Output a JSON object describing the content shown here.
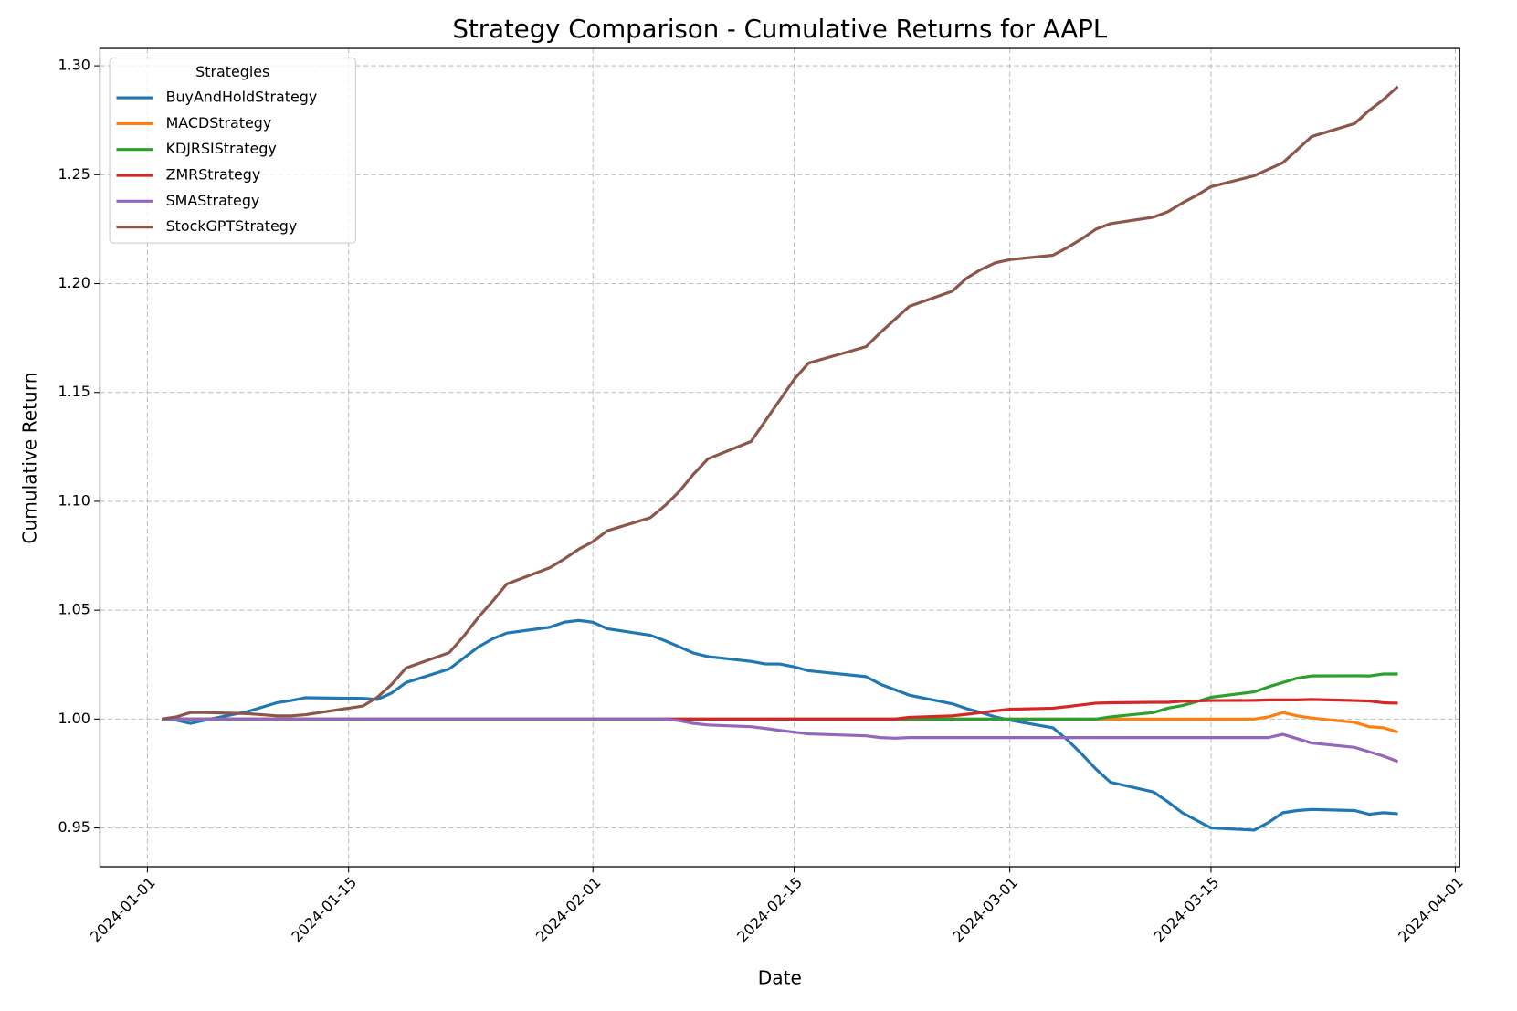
{
  "chart_data": {
    "type": "line",
    "title": "Strategy Comparison - Cumulative Returns for AAPL",
    "x_label": "Date",
    "y_label": "Cumulative Return",
    "legend_title": "Strategies",
    "legend": "upper left",
    "grid": true,
    "x": [
      "2024-01-02",
      "2024-01-03",
      "2024-01-04",
      "2024-01-05",
      "2024-01-08",
      "2024-01-09",
      "2024-01-10",
      "2024-01-11",
      "2024-01-12",
      "2024-01-16",
      "2024-01-17",
      "2024-01-18",
      "2024-01-19",
      "2024-01-22",
      "2024-01-23",
      "2024-01-24",
      "2024-01-25",
      "2024-01-26",
      "2024-01-29",
      "2024-01-30",
      "2024-01-31",
      "2024-02-01",
      "2024-02-02",
      "2024-02-05",
      "2024-02-06",
      "2024-02-07",
      "2024-02-08",
      "2024-02-09",
      "2024-02-12",
      "2024-02-13",
      "2024-02-14",
      "2024-02-15",
      "2024-02-16",
      "2024-02-20",
      "2024-02-21",
      "2024-02-22",
      "2024-02-23",
      "2024-02-26",
      "2024-02-27",
      "2024-02-28",
      "2024-02-29",
      "2024-03-01",
      "2024-03-04",
      "2024-03-05",
      "2024-03-06",
      "2024-03-07",
      "2024-03-08",
      "2024-03-11",
      "2024-03-12",
      "2024-03-13",
      "2024-03-14",
      "2024-03-15",
      "2024-03-18",
      "2024-03-19",
      "2024-03-20",
      "2024-03-21",
      "2024-03-22",
      "2024-03-25",
      "2024-03-26",
      "2024-03-27",
      "2024-03-28"
    ],
    "xlim": [
      "2023-12-28T16:48",
      "2024-04-01T07:12"
    ],
    "xticks": [
      "2024-01-01",
      "2024-01-15",
      "2024-02-01",
      "2024-02-15",
      "2024-03-01",
      "2024-03-15",
      "2024-04-01"
    ],
    "ylim": [
      0.9322,
      1.308
    ],
    "yticks": [
      0.95,
      {
        "value": 1.0,
        "label": "1.00"
      },
      1.05,
      {
        "value": 1.1,
        "label": "1.10"
      },
      1.15,
      {
        "value": 1.2,
        "label": "1.20"
      },
      1.25,
      {
        "value": 1.3,
        "label": "1.30"
      }
    ],
    "series": [
      {
        "name": "BuyAndHoldStrategy",
        "color": "#1f77b4",
        "values": [
          1.0,
          0.9995,
          0.998,
          0.9995,
          1.0035,
          1.0055,
          1.0075,
          1.0085,
          1.0098,
          1.0095,
          1.009,
          1.012,
          1.0168,
          1.023,
          1.028,
          1.033,
          1.0368,
          1.0395,
          1.0422,
          1.0445,
          1.0453,
          1.0445,
          1.0415,
          1.0385,
          1.036,
          1.0332,
          1.0303,
          1.0287,
          1.0265,
          1.0253,
          1.0253,
          1.024,
          1.0222,
          1.0195,
          1.016,
          1.0135,
          1.011,
          1.007,
          1.0048,
          1.003,
          1.001,
          0.9995,
          0.996,
          0.9905,
          0.984,
          0.977,
          0.971,
          0.9665,
          0.962,
          0.957,
          0.9535,
          0.95,
          0.949,
          0.9525,
          0.957,
          0.958,
          0.9585,
          0.958,
          0.9563,
          0.957,
          0.9565
        ]
      },
      {
        "name": "MACDStrategy",
        "color": "#ff7f0e",
        "values": [
          1.0,
          1.0,
          1.0,
          1.0,
          1.0,
          1.0,
          1.0,
          1.0,
          1.0,
          1.0,
          1.0,
          1.0,
          1.0,
          1.0,
          1.0,
          1.0,
          1.0,
          1.0,
          1.0,
          1.0,
          1.0,
          1.0,
          1.0,
          1.0,
          1.0,
          1.0,
          1.0,
          1.0,
          1.0,
          1.0,
          1.0,
          1.0,
          1.0,
          1.0,
          1.0,
          1.0,
          1.0,
          1.0,
          1.0,
          1.0,
          1.0,
          1.0,
          1.0,
          1.0,
          1.0,
          1.0,
          1.0,
          1.0,
          1.0,
          1.0,
          1.0,
          1.0,
          1.0,
          1.001,
          1.003,
          1.0015,
          1.0005,
          0.9985,
          0.9965,
          0.996,
          0.994
        ]
      },
      {
        "name": "KDJRSIStrategy",
        "color": "#2ca02c",
        "values": [
          1.0,
          1.0,
          1.0,
          1.0,
          1.0,
          1.0,
          1.0,
          1.0,
          1.0,
          1.0,
          1.0,
          1.0,
          1.0,
          1.0,
          1.0,
          1.0,
          1.0,
          1.0,
          1.0,
          1.0,
          1.0,
          1.0,
          1.0,
          1.0,
          1.0,
          1.0,
          1.0,
          1.0,
          1.0,
          1.0,
          1.0,
          1.0,
          1.0,
          1.0,
          1.0,
          1.0,
          1.0,
          1.0,
          1.0,
          1.0,
          1.0,
          1.0,
          1.0,
          1.0,
          1.0,
          1.0,
          1.001,
          1.003,
          1.005,
          1.0062,
          1.008,
          1.01,
          1.0125,
          1.0148,
          1.0168,
          1.0188,
          1.0198,
          1.0199,
          1.0198,
          1.0207,
          1.0207
        ]
      },
      {
        "name": "ZMRStrategy",
        "color": "#d62728",
        "values": [
          1.0,
          1.0,
          1.0,
          1.0,
          1.0,
          1.0,
          1.0,
          1.0,
          1.0,
          1.0,
          1.0,
          1.0,
          1.0,
          1.0,
          1.0,
          1.0,
          1.0,
          1.0,
          1.0,
          1.0,
          1.0,
          1.0,
          1.0,
          1.0,
          1.0,
          1.0,
          1.0,
          1.0,
          1.0,
          1.0,
          1.0,
          1.0,
          1.0,
          1.0,
          1.0,
          1.0,
          1.0008,
          1.0015,
          1.0022,
          1.003,
          1.0038,
          1.0045,
          1.005,
          1.0057,
          1.0065,
          1.0073,
          1.0075,
          1.0077,
          1.0077,
          1.0082,
          1.0083,
          1.0085,
          1.0086,
          1.0088,
          1.0088,
          1.0088,
          1.009,
          1.0085,
          1.0083,
          1.0075,
          1.0073
        ]
      },
      {
        "name": "SMAStrategy",
        "color": "#9467bd",
        "values": [
          1.0,
          1.0,
          1.0,
          1.0,
          1.0,
          1.0,
          1.0,
          1.0,
          1.0,
          1.0,
          1.0,
          1.0,
          1.0,
          1.0,
          1.0,
          1.0,
          1.0,
          1.0,
          1.0,
          1.0,
          1.0,
          1.0,
          1.0,
          1.0,
          1.0,
          0.9993,
          0.998,
          0.9973,
          0.9965,
          0.9957,
          0.9948,
          0.994,
          0.9932,
          0.9923,
          0.9915,
          0.9912,
          0.9915,
          0.9915,
          0.9915,
          0.9915,
          0.9915,
          0.9915,
          0.9915,
          0.9915,
          0.9915,
          0.9915,
          0.9915,
          0.9915,
          0.9915,
          0.9915,
          0.9915,
          0.9915,
          0.9915,
          0.9915,
          0.993,
          0.991,
          0.989,
          0.987,
          0.985,
          0.983,
          0.9805
        ]
      },
      {
        "name": "StockGPTStrategy",
        "color": "#8c564b",
        "values": [
          1.0,
          1.001,
          1.003,
          1.003,
          1.0025,
          1.002,
          1.0015,
          1.0015,
          1.002,
          1.006,
          1.01,
          1.016,
          1.0235,
          1.0305,
          1.038,
          1.0465,
          1.054,
          1.062,
          1.0695,
          1.0735,
          1.078,
          1.0815,
          1.0865,
          1.0925,
          1.098,
          1.1045,
          1.1125,
          1.1195,
          1.1275,
          1.137,
          1.1465,
          1.156,
          1.1635,
          1.171,
          1.1775,
          1.1835,
          1.1895,
          1.1965,
          1.2025,
          1.2065,
          1.2095,
          1.211,
          1.213,
          1.2165,
          1.2205,
          1.225,
          1.2275,
          1.2305,
          1.233,
          1.237,
          1.2405,
          1.2445,
          1.2495,
          1.2525,
          1.2555,
          1.2615,
          1.2675,
          1.2735,
          1.2795,
          1.2845,
          1.2905
        ]
      }
    ]
  }
}
